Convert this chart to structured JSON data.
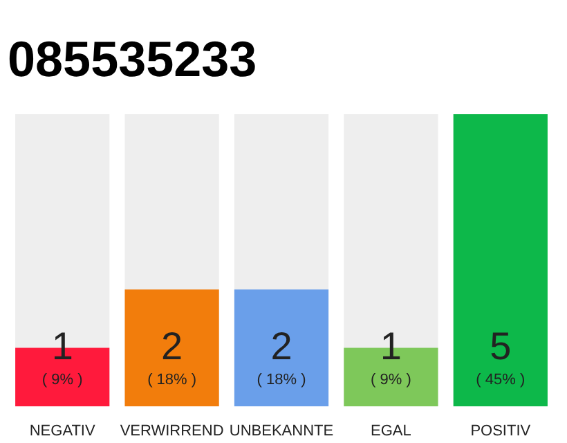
{
  "chart_data": {
    "type": "bar",
    "title": "085535233",
    "categories": [
      "NEGATIV",
      "VERWIRREND",
      "UNBEKANNTE",
      "EGAL",
      "POSITIV"
    ],
    "values": [
      1,
      2,
      2,
      1,
      5
    ],
    "colors": [
      "#ff1a3c",
      "#f27d0c",
      "#6a9fea",
      "#7ec85a",
      "#0db84a"
    ],
    "ylim": [
      0,
      5
    ],
    "tick_labels": "x",
    "grid": false,
    "data_labels": true,
    "annotations": [
      {
        "text": "( 9% )",
        "x": "NEGATIV",
        "y": 0
      },
      {
        "text": "( 18% )",
        "x": "VERWIRREND",
        "y": 0
      },
      {
        "text": "( 18% )",
        "x": "UNBEKANNTE",
        "y": 0
      },
      {
        "text": "( 9% )",
        "x": "EGAL",
        "y": 0
      },
      {
        "text": "( 45% )",
        "x": "POSITIV",
        "y": 0
      }
    ]
  }
}
